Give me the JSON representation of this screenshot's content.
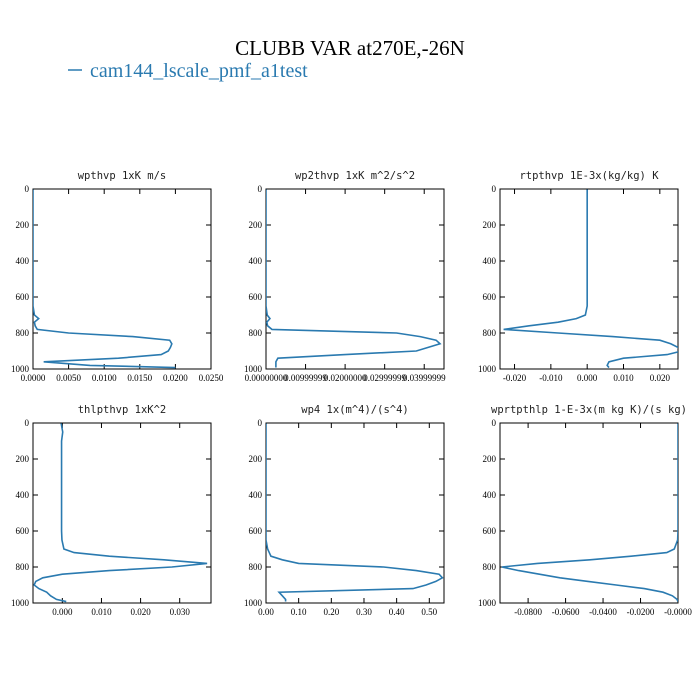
{
  "title": "CLUBB VAR at270E,-26N",
  "legend": {
    "name": "cam144_lscale_pmf_a1test",
    "color": "#2a7ab0"
  },
  "chart_data": [
    {
      "type": "line",
      "title": "wpthvp  1xK m/s",
      "y": [
        3,
        50,
        100,
        150,
        200,
        250,
        300,
        350,
        400,
        450,
        500,
        550,
        600,
        650,
        700,
        720,
        740,
        760,
        780,
        800,
        820,
        840,
        860,
        880,
        900,
        920,
        940,
        960,
        980,
        992
      ],
      "values": [
        0,
        0,
        0,
        0,
        0,
        0,
        0,
        0,
        0,
        0,
        0,
        0,
        0,
        0,
        0.0002,
        0.0008,
        0.0002,
        0.0003,
        0.0006,
        0.005,
        0.014,
        0.0192,
        0.0195,
        0.0193,
        0.019,
        0.018,
        0.012,
        0.0015,
        0.008,
        0.02
      ],
      "xlim": [
        0,
        0.025
      ],
      "xticks": [
        {
          "value": 0,
          "label": "0.0000"
        },
        {
          "value": 0.005,
          "label": "0.0050"
        },
        {
          "value": 0.01,
          "label": "0.0100"
        },
        {
          "value": 0.015,
          "label": "0.0150"
        },
        {
          "value": 0.02,
          "label": "0.0200"
        },
        {
          "value": 0.025,
          "label": "0.0250"
        }
      ],
      "ylim": [
        1000,
        0
      ],
      "yticks": [
        0,
        200,
        400,
        600,
        800,
        1000
      ]
    },
    {
      "type": "line",
      "title": "wp2thvp  1xK m^2/s^2",
      "y": [
        3,
        50,
        100,
        150,
        200,
        250,
        300,
        350,
        400,
        450,
        500,
        550,
        600,
        650,
        700,
        720,
        740,
        760,
        780,
        800,
        820,
        840,
        860,
        880,
        900,
        920,
        940,
        960,
        980,
        992
      ],
      "values": [
        0,
        0,
        0,
        0,
        0,
        0,
        0,
        0,
        0,
        0,
        0,
        0,
        0,
        0,
        0.0003,
        0.001,
        0.0002,
        0.0004,
        0.0015,
        0.033,
        0.039,
        0.043,
        0.044,
        0.041,
        0.038,
        0.02,
        0.003,
        0.0025,
        0.0025,
        0.0025
      ],
      "xlim": [
        0,
        0.045
      ],
      "xticks": [
        {
          "value": 0,
          "label": "0.00000000"
        },
        {
          "value": 0.01,
          "label": "0.00999999"
        },
        {
          "value": 0.02,
          "label": "0.02000000"
        },
        {
          "value": 0.03,
          "label": "0.02999999"
        },
        {
          "value": 0.04,
          "label": "0.03999999"
        }
      ],
      "ylim": [
        1000,
        0
      ],
      "yticks": [
        0,
        200,
        400,
        600,
        800,
        1000
      ]
    },
    {
      "type": "line",
      "title": "rtpthvp  1E-3x(kg/kg) K",
      "y": [
        3,
        50,
        100,
        150,
        200,
        250,
        300,
        350,
        400,
        450,
        500,
        550,
        600,
        650,
        700,
        720,
        740,
        760,
        780,
        800,
        820,
        840,
        860,
        880,
        900,
        920,
        940,
        960,
        980,
        992
      ],
      "values": [
        0,
        0,
        0,
        0,
        0,
        0,
        0,
        0,
        0,
        0,
        0,
        0,
        0,
        0,
        -0.0005,
        -0.003,
        -0.008,
        -0.016,
        -0.023,
        -0.008,
        0.007,
        0.02,
        0.023,
        0.025,
        0.026,
        0.022,
        0.01,
        0.006,
        0.0055,
        0.006
      ],
      "xlim": [
        -0.024,
        0.025
      ],
      "xticks": [
        {
          "value": -0.02,
          "label": "-0.020"
        },
        {
          "value": -0.01,
          "label": "-0.010"
        },
        {
          "value": 0,
          "label": "0.000"
        },
        {
          "value": 0.01,
          "label": "0.010"
        },
        {
          "value": 0.02,
          "label": "0.020"
        }
      ],
      "ylim": [
        1000,
        0
      ],
      "yticks": [
        0,
        200,
        400,
        600,
        800,
        1000
      ]
    },
    {
      "type": "line",
      "title": "thlpthvp  1xK^2",
      "y": [
        3,
        50,
        100,
        150,
        200,
        250,
        300,
        350,
        400,
        450,
        500,
        550,
        600,
        650,
        700,
        720,
        740,
        760,
        780,
        800,
        820,
        840,
        860,
        880,
        900,
        920,
        940,
        960,
        980,
        992
      ],
      "values": [
        -0.0003,
        0.0001,
        -0.0002,
        -0.0002,
        -0.0002,
        -0.0002,
        -0.0002,
        -0.0002,
        -0.0002,
        -0.0002,
        -0.0002,
        -0.0002,
        -0.0002,
        -0.0001,
        0.0004,
        0.003,
        0.012,
        0.026,
        0.037,
        0.028,
        0.012,
        0,
        -0.005,
        -0.0068,
        -0.0072,
        -0.006,
        -0.004,
        -0.003,
        -0.0015,
        0.001
      ],
      "xlim": [
        -0.0075,
        0.038
      ],
      "xticks": [
        {
          "value": 0,
          "label": "0.000"
        },
        {
          "value": 0.01,
          "label": "0.010"
        },
        {
          "value": 0.02,
          "label": "0.020"
        },
        {
          "value": 0.03,
          "label": "0.030"
        }
      ],
      "ylim": [
        1000,
        0
      ],
      "yticks": [
        0,
        200,
        400,
        600,
        800,
        1000
      ]
    },
    {
      "type": "line",
      "title": "wp4  1x(m^4)/(s^4)",
      "y": [
        3,
        50,
        100,
        150,
        200,
        250,
        300,
        350,
        400,
        450,
        500,
        550,
        600,
        650,
        700,
        720,
        740,
        760,
        780,
        800,
        820,
        840,
        860,
        880,
        900,
        920,
        940,
        960,
        980,
        992
      ],
      "values": [
        0,
        0,
        0,
        0,
        0,
        0,
        0,
        0,
        0,
        0,
        0,
        0,
        0,
        0,
        0.005,
        0.01,
        0.015,
        0.05,
        0.1,
        0.36,
        0.46,
        0.53,
        0.54,
        0.52,
        0.49,
        0.45,
        0.04,
        0.05,
        0.06,
        0.06
      ],
      "xlim": [
        0,
        0.545
      ],
      "xticks": [
        {
          "value": 0,
          "label": "0.00"
        },
        {
          "value": 0.1,
          "label": "0.10"
        },
        {
          "value": 0.2,
          "label": "0.20"
        },
        {
          "value": 0.3,
          "label": "0.30"
        },
        {
          "value": 0.4,
          "label": "0.40"
        },
        {
          "value": 0.5,
          "label": "0.50"
        }
      ],
      "ylim": [
        1000,
        0
      ],
      "yticks": [
        0,
        200,
        400,
        600,
        800,
        1000
      ]
    },
    {
      "type": "line",
      "title": "wprtpthlp  1-E-3x(m kg K)/(s kg)",
      "y": [
        3,
        50,
        100,
        150,
        200,
        250,
        300,
        350,
        400,
        450,
        500,
        550,
        600,
        650,
        700,
        720,
        740,
        760,
        780,
        800,
        820,
        840,
        860,
        880,
        900,
        920,
        940,
        960,
        980,
        992
      ],
      "values": [
        0,
        0,
        0,
        0,
        0,
        0,
        0,
        0,
        0,
        0,
        0,
        0,
        0,
        -0.0002,
        -0.002,
        -0.006,
        -0.025,
        -0.047,
        -0.075,
        -0.094,
        -0.085,
        -0.074,
        -0.063,
        -0.048,
        -0.033,
        -0.018,
        -0.008,
        -0.003,
        -0.0005,
        0
      ],
      "xlim": [
        -0.095,
        0
      ],
      "xticks": [
        {
          "value": -0.08,
          "label": "-0.0800"
        },
        {
          "value": -0.06,
          "label": "-0.0600"
        },
        {
          "value": -0.04,
          "label": "-0.0400"
        },
        {
          "value": -0.02,
          "label": "-0.0200"
        },
        {
          "value": 0,
          "label": "-0.0000"
        }
      ],
      "ylim": [
        1000,
        0
      ],
      "yticks": [
        0,
        200,
        400,
        600,
        800,
        1000
      ]
    }
  ]
}
